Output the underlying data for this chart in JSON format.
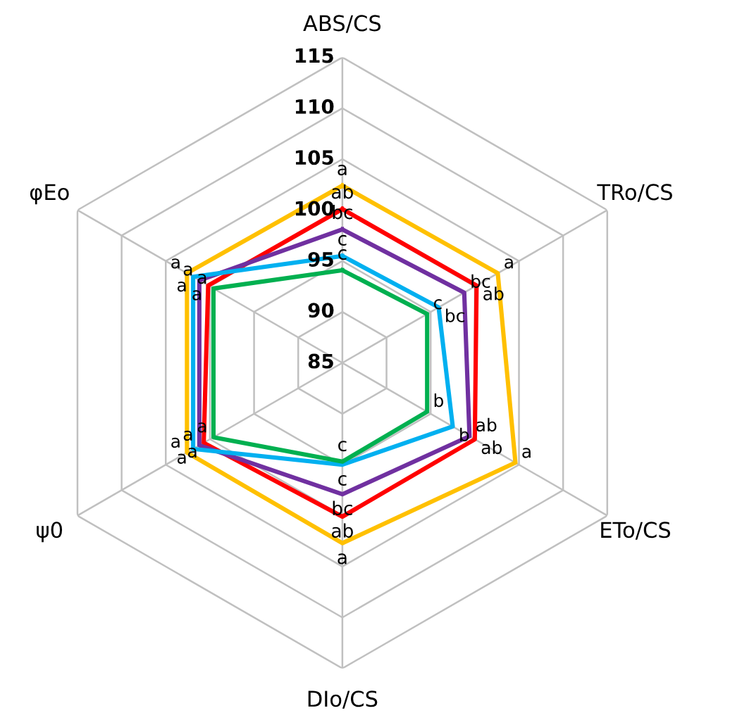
{
  "chart_data": {
    "type": "radar",
    "categories": [
      "ABS/CS",
      "TRo/CS",
      "ETo/CS",
      "DIo/CS",
      "ψ0",
      "φEo"
    ],
    "ylim": [
      85,
      115
    ],
    "yticks": [
      85,
      90,
      95,
      100,
      105,
      110,
      115
    ],
    "grid": true,
    "series": [
      {
        "color": "#ffc000",
        "values": [
          102.4,
          102.6,
          104.6,
          102.7,
          102.6,
          102.6
        ],
        "value_labels": [
          "a",
          "a",
          "a",
          "a",
          "a",
          "a"
        ]
      },
      {
        "color": "#ff0000",
        "values": [
          100.1,
          100.2,
          100.0,
          100.1,
          100.7,
          100.2
        ],
        "value_labels": [
          "ab",
          "ab",
          "ab",
          "ab",
          "a",
          "a"
        ]
      },
      {
        "color": "#7030a0",
        "values": [
          98.1,
          98.8,
          99.4,
          97.9,
          101.2,
          101.2
        ],
        "value_labels": [
          "bc",
          "bc",
          "ab",
          "bc",
          "a",
          "a"
        ]
      },
      {
        "color": "#00b0f0",
        "values": [
          95.5,
          95.9,
          97.5,
          95.0,
          101.9,
          101.9
        ],
        "value_labels": [
          "c",
          "bc",
          "b",
          "c",
          "a",
          "a"
        ]
      },
      {
        "color": "#00b050",
        "values": [
          94.1,
          94.6,
          94.6,
          94.7,
          99.6,
          99.6
        ],
        "value_labels": [
          "c",
          "c",
          "b",
          "c",
          "a",
          "a"
        ]
      }
    ]
  }
}
